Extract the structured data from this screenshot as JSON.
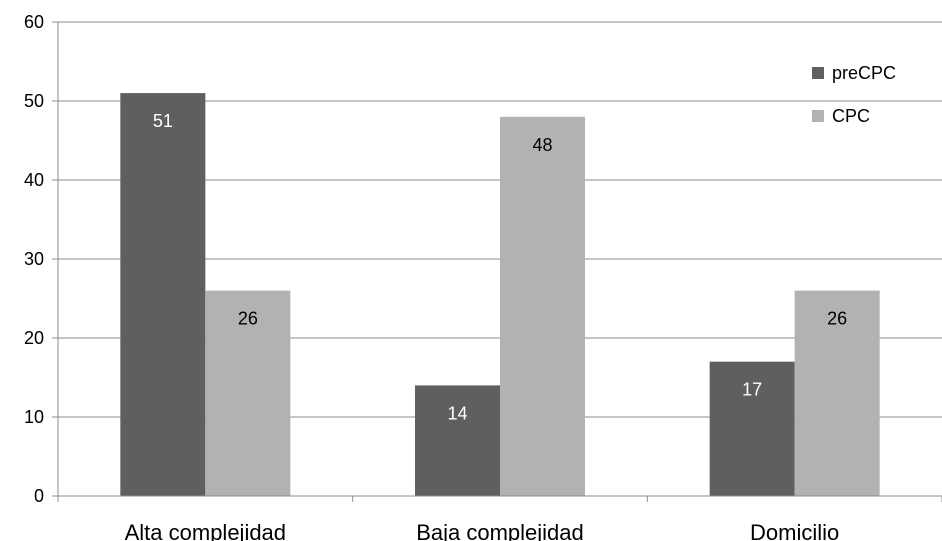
{
  "chart_data": {
    "type": "bar",
    "title": "",
    "xlabel": "",
    "ylabel": "",
    "categories": [
      "Alta complejidad",
      "Baja complejidad",
      "Domicilio"
    ],
    "series": [
      {
        "name": "preCPC",
        "values": [
          51,
          14,
          17
        ],
        "color": "#5f5f5f",
        "label_color": "#ffffff"
      },
      {
        "name": "CPC",
        "values": [
          26,
          48,
          26
        ],
        "color": "#b2b2b2",
        "label_color": "#000000"
      }
    ],
    "ylim": [
      0,
      60
    ],
    "yticks": [
      0,
      10,
      20,
      30,
      40,
      50,
      60
    ],
    "grid": true,
    "legend_position": "top-right",
    "data_labels": true
  }
}
